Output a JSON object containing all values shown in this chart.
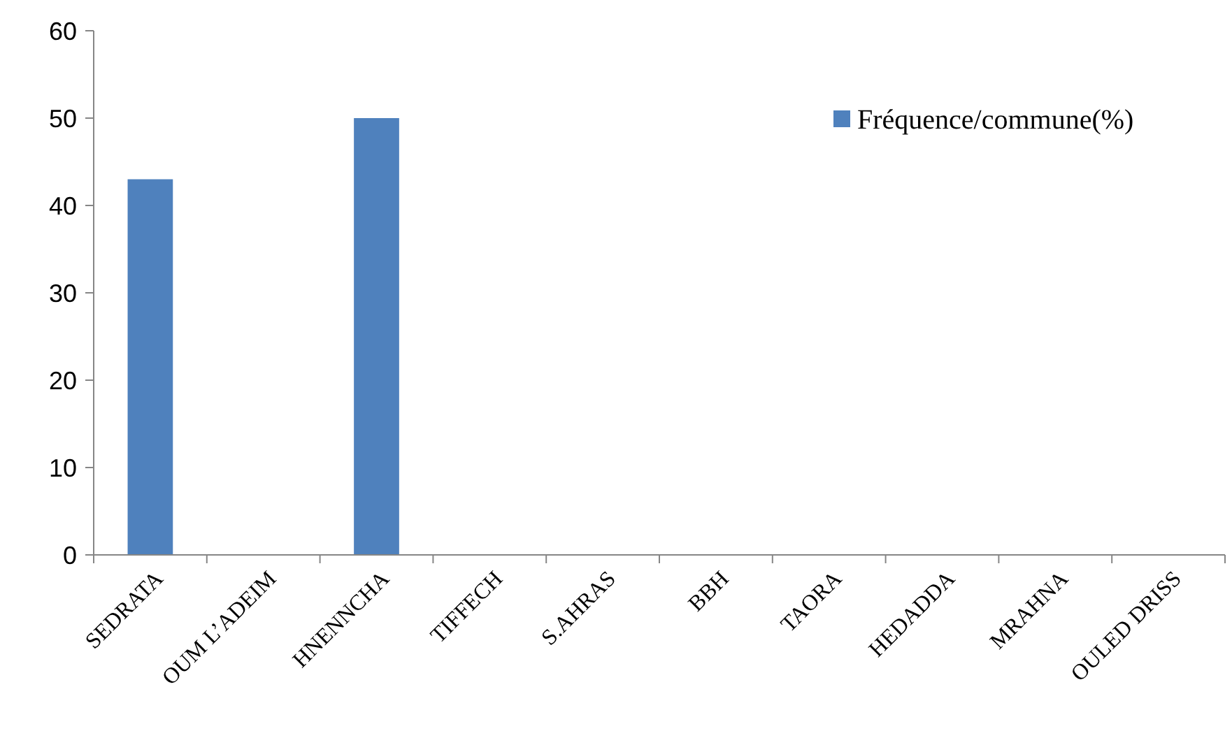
{
  "chart_data": {
    "type": "bar",
    "categories": [
      "SEDRATA",
      "OUM L’ADEIM",
      "HNENNCHA",
      "TIFFECH",
      "S.AHRAS",
      "BBH",
      "TAORA",
      "HEDADDA",
      "MRAHNA",
      "OULED DRISS"
    ],
    "series": [
      {
        "name": "Fréquence/commune(%)",
        "color": "#4f81bd",
        "values": [
          43,
          0,
          50,
          0,
          0,
          0,
          0,
          0,
          0,
          0
        ]
      }
    ],
    "ylim": [
      0,
      60
    ],
    "yticks": [
      0,
      10,
      20,
      30,
      40,
      50,
      60
    ],
    "grid": false,
    "legend": "top right"
  }
}
